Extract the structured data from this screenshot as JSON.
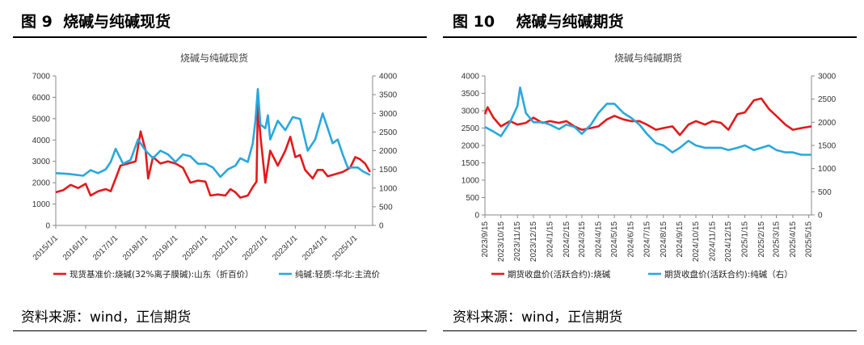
{
  "figures": [
    {
      "fig_title": "图 9  烧碱与纯碱现货",
      "source": "资料来源：wind，正信期货",
      "colors": {
        "series1": "#e3191c",
        "series2": "#29a8dd"
      }
    },
    {
      "fig_title": "图 10    烧碱与纯碱期货",
      "source": "资料来源：wind，正信期货",
      "colors": {
        "series1": "#e3191c",
        "series2": "#29a8dd"
      }
    }
  ],
  "chart_data": [
    {
      "type": "line",
      "title": "烧碱与纯碱现货",
      "x_ticks": [
        "2015/1/1",
        "2016/1/1",
        "2017/1/1",
        "2018/1/1",
        "2019/1/1",
        "2020/1/1",
        "2021/1/1",
        "2022/1/1",
        "2023/1/1",
        "2024/1/1",
        "2025/1/1"
      ],
      "y_left_ticks": [
        "0",
        "1000",
        "2000",
        "3000",
        "4000",
        "5000",
        "6000",
        "7000"
      ],
      "y_right_ticks": [
        "0",
        "500",
        "1000",
        "1500",
        "2000",
        "2500",
        "3000",
        "3500",
        "4000"
      ],
      "ylim_left": [
        0,
        7000
      ],
      "ylim_right": [
        0,
        4000
      ],
      "xlim": [
        "2015/1/1",
        "2025/8/1"
      ],
      "legend_position": "bottom",
      "grid": false,
      "series": [
        {
          "name": "现货基准价:烧碱(32%离子膜碱):山东（折百价）",
          "axis": "left",
          "points": [
            [
              "2015/1/1",
              1550
            ],
            [
              "2015/4/1",
              1650
            ],
            [
              "2015/7/1",
              1900
            ],
            [
              "2015/10/1",
              1750
            ],
            [
              "2016/1/1",
              1950
            ],
            [
              "2016/3/1",
              1400
            ],
            [
              "2016/6/1",
              1600
            ],
            [
              "2016/9/1",
              1700
            ],
            [
              "2016/11/1",
              1600
            ],
            [
              "2017/1/1",
              2200
            ],
            [
              "2017/3/1",
              2800
            ],
            [
              "2017/6/1",
              2900
            ],
            [
              "2017/9/1",
              3000
            ],
            [
              "2017/11/1",
              4400
            ],
            [
              "2018/1/1",
              3500
            ],
            [
              "2018/2/1",
              2200
            ],
            [
              "2018/4/1",
              3200
            ],
            [
              "2018/7/1",
              2900
            ],
            [
              "2018/10/1",
              3000
            ],
            [
              "2019/1/1",
              2900
            ],
            [
              "2019/4/1",
              2700
            ],
            [
              "2019/7/1",
              2000
            ],
            [
              "2019/10/1",
              2100
            ],
            [
              "2020/1/1",
              2050
            ],
            [
              "2020/3/1",
              1400
            ],
            [
              "2020/6/1",
              1450
            ],
            [
              "2020/9/1",
              1400
            ],
            [
              "2020/11/1",
              1700
            ],
            [
              "2021/1/1",
              1550
            ],
            [
              "2021/3/1",
              1300
            ],
            [
              "2021/6/1",
              1400
            ],
            [
              "2021/8/1",
              1800
            ],
            [
              "2021/9/15",
              2050
            ],
            [
              "2021/10/1",
              5700
            ],
            [
              "2021/11/1",
              4200
            ],
            [
              "2022/1/1",
              2000
            ],
            [
              "2022/3/1",
              3500
            ],
            [
              "2022/6/1",
              2800
            ],
            [
              "2022/9/1",
              3500
            ],
            [
              "2022/11/1",
              4150
            ],
            [
              "2023/1/1",
              3200
            ],
            [
              "2023/3/1",
              3300
            ],
            [
              "2023/5/1",
              2600
            ],
            [
              "2023/8/1",
              2200
            ],
            [
              "2023/10/1",
              2600
            ],
            [
              "2023/12/1",
              2600
            ],
            [
              "2024/2/1",
              2300
            ],
            [
              "2024/5/1",
              2400
            ],
            [
              "2024/8/1",
              2500
            ],
            [
              "2024/11/1",
              2700
            ],
            [
              "2025/1/1",
              3200
            ],
            [
              "2025/3/1",
              3100
            ],
            [
              "2025/5/1",
              2900
            ],
            [
              "2025/7/1",
              2500
            ]
          ]
        },
        {
          "name": "纯碱:轻质:华北:主流价",
          "axis": "right",
          "points": [
            [
              "2015/1/1",
              1400
            ],
            [
              "2015/6/1",
              1380
            ],
            [
              "2015/12/1",
              1330
            ],
            [
              "2016/3/1",
              1480
            ],
            [
              "2016/6/1",
              1400
            ],
            [
              "2016/9/1",
              1500
            ],
            [
              "2016/11/1",
              1700
            ],
            [
              "2017/1/1",
              2050
            ],
            [
              "2017/4/1",
              1650
            ],
            [
              "2017/7/1",
              1750
            ],
            [
              "2017/10/1",
              2300
            ],
            [
              "2018/1/1",
              2000
            ],
            [
              "2018/4/1",
              1800
            ],
            [
              "2018/7/1",
              2000
            ],
            [
              "2018/10/1",
              1900
            ],
            [
              "2019/1/1",
              1700
            ],
            [
              "2019/4/1",
              1900
            ],
            [
              "2019/7/1",
              1850
            ],
            [
              "2019/10/1",
              1650
            ],
            [
              "2020/1/1",
              1650
            ],
            [
              "2020/4/1",
              1550
            ],
            [
              "2020/7/1",
              1300
            ],
            [
              "2020/10/1",
              1500
            ],
            [
              "2021/1/1",
              1600
            ],
            [
              "2021/3/1",
              1800
            ],
            [
              "2021/6/1",
              1700
            ],
            [
              "2021/8/1",
              2200
            ],
            [
              "2021/9/1",
              2800
            ],
            [
              "2021/10/1",
              3650
            ],
            [
              "2021/11/1",
              2700
            ],
            [
              "2022/1/1",
              2600
            ],
            [
              "2022/2/1",
              2950
            ],
            [
              "2022/3/1",
              2300
            ],
            [
              "2022/6/1",
              2800
            ],
            [
              "2022/9/1",
              2550
            ],
            [
              "2022/12/1",
              2900
            ],
            [
              "2023/3/1",
              2850
            ],
            [
              "2023/6/1",
              2000
            ],
            [
              "2023/9/1",
              2300
            ],
            [
              "2023/12/1",
              3000
            ],
            [
              "2024/2/1",
              2600
            ],
            [
              "2024/4/1",
              2200
            ],
            [
              "2024/6/1",
              2300
            ],
            [
              "2024/8/1",
              1900
            ],
            [
              "2024/10/1",
              1550
            ],
            [
              "2024/12/1",
              1550
            ],
            [
              "2025/2/1",
              1550
            ],
            [
              "2025/4/1",
              1450
            ],
            [
              "2025/7/1",
              1350
            ]
          ]
        }
      ]
    },
    {
      "type": "line",
      "title": "烧碱与纯碱期货",
      "x_ticks": [
        "2023/9/15",
        "2023/10/15",
        "2023/11/15",
        "2023/12/15",
        "2024/1/15",
        "2024/2/15",
        "2024/3/15",
        "2024/4/15",
        "2024/5/15",
        "2024/6/15",
        "2024/7/15",
        "2024/8/15",
        "2024/9/15",
        "2024/10/15",
        "2024/11/15",
        "2024/12/15",
        "2025/1/15",
        "2025/2/15",
        "2025/3/15",
        "2025/4/15",
        "2025/5/15"
      ],
      "y_left_ticks": [
        "0",
        "500",
        "1000",
        "1500",
        "2000",
        "2500",
        "3000",
        "3500",
        "4000"
      ],
      "y_right_ticks": [
        "0",
        "500",
        "1000",
        "1500",
        "2000",
        "2500",
        "3000"
      ],
      "ylim_left": [
        0,
        4000
      ],
      "ylim_right": [
        0,
        3000
      ],
      "xlim": [
        "2023/9/15",
        "2025/5/20"
      ],
      "legend_position": "bottom",
      "grid": false,
      "series": [
        {
          "name": "期货收盘价(活跃合约):烧碱",
          "axis": "left",
          "points": [
            [
              "2023/9/15",
              2900
            ],
            [
              "2023/9/20",
              3100
            ],
            [
              "2023/10/1",
              2800
            ],
            [
              "2023/10/15",
              2550
            ],
            [
              "2023/11/1",
              2700
            ],
            [
              "2023/11/15",
              2600
            ],
            [
              "2023/12/1",
              2650
            ],
            [
              "2023/12/15",
              2800
            ],
            [
              "2024/1/1",
              2650
            ],
            [
              "2024/1/15",
              2700
            ],
            [
              "2024/2/1",
              2650
            ],
            [
              "2024/2/15",
              2700
            ],
            [
              "2024/3/1",
              2550
            ],
            [
              "2024/3/15",
              2450
            ],
            [
              "2024/4/1",
              2500
            ],
            [
              "2024/4/15",
              2550
            ],
            [
              "2024/5/1",
              2750
            ],
            [
              "2024/5/15",
              2850
            ],
            [
              "2024/6/1",
              2750
            ],
            [
              "2024/6/15",
              2700
            ],
            [
              "2024/7/1",
              2700
            ],
            [
              "2024/7/15",
              2600
            ],
            [
              "2024/8/1",
              2450
            ],
            [
              "2024/8/15",
              2500
            ],
            [
              "2024/9/1",
              2550
            ],
            [
              "2024/9/15",
              2300
            ],
            [
              "2024/10/1",
              2600
            ],
            [
              "2024/10/15",
              2700
            ],
            [
              "2024/11/1",
              2600
            ],
            [
              "2024/11/15",
              2700
            ],
            [
              "2024/12/1",
              2650
            ],
            [
              "2024/12/15",
              2450
            ],
            [
              "2025/1/1",
              2900
            ],
            [
              "2025/1/15",
              2950
            ],
            [
              "2025/2/1",
              3300
            ],
            [
              "2025/2/15",
              3350
            ],
            [
              "2025/3/1",
              3050
            ],
            [
              "2025/3/15",
              2850
            ],
            [
              "2025/4/1",
              2600
            ],
            [
              "2025/4/15",
              2450
            ],
            [
              "2025/5/1",
              2500
            ],
            [
              "2025/5/20",
              2550
            ]
          ]
        },
        {
          "name": "期货收盘价(活跃合约):纯碱（右）",
          "axis": "right",
          "points": [
            [
              "2023/9/15",
              1900
            ],
            [
              "2023/10/1",
              1800
            ],
            [
              "2023/10/15",
              1700
            ],
            [
              "2023/11/1",
              2000
            ],
            [
              "2023/11/15",
              2350
            ],
            [
              "2023/11/20",
              2750
            ],
            [
              "2023/12/1",
              2200
            ],
            [
              "2023/12/15",
              2000
            ],
            [
              "2024/1/1",
              2000
            ],
            [
              "2024/1/15",
              1950
            ],
            [
              "2024/2/1",
              1850
            ],
            [
              "2024/2/15",
              1950
            ],
            [
              "2024/3/1",
              1900
            ],
            [
              "2024/3/15",
              1750
            ],
            [
              "2024/4/1",
              1950
            ],
            [
              "2024/4/15",
              2200
            ],
            [
              "2024/5/1",
              2400
            ],
            [
              "2024/5/15",
              2400
            ],
            [
              "2024/6/1",
              2200
            ],
            [
              "2024/6/15",
              2100
            ],
            [
              "2024/7/1",
              1950
            ],
            [
              "2024/7/15",
              1750
            ],
            [
              "2024/8/1",
              1550
            ],
            [
              "2024/8/15",
              1500
            ],
            [
              "2024/9/1",
              1350
            ],
            [
              "2024/9/15",
              1450
            ],
            [
              "2024/10/1",
              1600
            ],
            [
              "2024/10/15",
              1500
            ],
            [
              "2024/11/1",
              1450
            ],
            [
              "2024/11/15",
              1450
            ],
            [
              "2024/12/1",
              1450
            ],
            [
              "2024/12/15",
              1400
            ],
            [
              "2025/1/1",
              1450
            ],
            [
              "2025/1/15",
              1500
            ],
            [
              "2025/2/1",
              1400
            ],
            [
              "2025/2/15",
              1450
            ],
            [
              "2025/3/1",
              1500
            ],
            [
              "2025/3/15",
              1400
            ],
            [
              "2025/4/1",
              1350
            ],
            [
              "2025/4/15",
              1350
            ],
            [
              "2025/5/1",
              1300
            ],
            [
              "2025/5/20",
              1300
            ]
          ]
        }
      ]
    }
  ]
}
